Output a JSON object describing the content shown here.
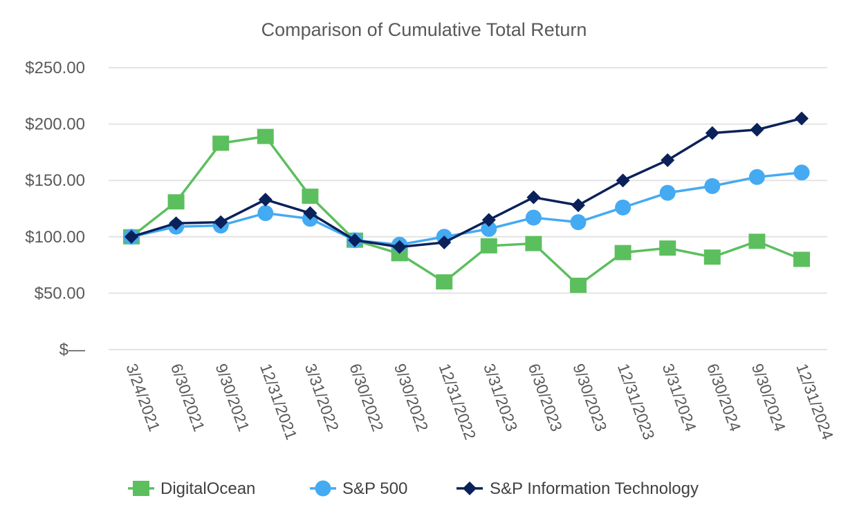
{
  "chart_data": {
    "type": "line",
    "title": "Comparison of Cumulative Total Return",
    "xlabel": "",
    "ylabel": "",
    "categories": [
      "3/24/2021",
      "6/30/2021",
      "9/30/2021",
      "12/31/2021",
      "3/31/2022",
      "6/30/2022",
      "9/30/2022",
      "12/31/2022",
      "3/31/2023",
      "6/30/2023",
      "9/30/2023",
      "12/31/2023",
      "3/31/2024",
      "6/30/2024",
      "9/30/2024",
      "12/31/2024"
    ],
    "ylim": [
      0,
      250
    ],
    "yticks": [
      0,
      50,
      100,
      150,
      200,
      250
    ],
    "ytick_labels": [
      "$—",
      "$50.00",
      "$100.00",
      "$150.00",
      "$200.00",
      "$250.00"
    ],
    "grid": true,
    "legend_position": "bottom",
    "series": [
      {
        "name": "DigitalOcean",
        "color": "#5cbf5e",
        "marker": "square",
        "values": [
          100,
          131,
          183,
          189,
          136,
          97,
          85,
          60,
          92,
          94,
          57,
          86,
          90,
          82,
          96,
          80
        ]
      },
      {
        "name": "S&P 500",
        "color": "#44aaf2",
        "marker": "circle",
        "values": [
          100,
          109,
          110,
          121,
          116,
          97,
          93,
          100,
          107,
          117,
          113,
          126,
          139,
          145,
          153,
          157
        ]
      },
      {
        "name": "S&P Information Technology",
        "color": "#0a2159",
        "marker": "diamond",
        "values": [
          100,
          112,
          113,
          133,
          121,
          97,
          91,
          95,
          115,
          135,
          128,
          150,
          168,
          192,
          195,
          205
        ]
      }
    ]
  }
}
